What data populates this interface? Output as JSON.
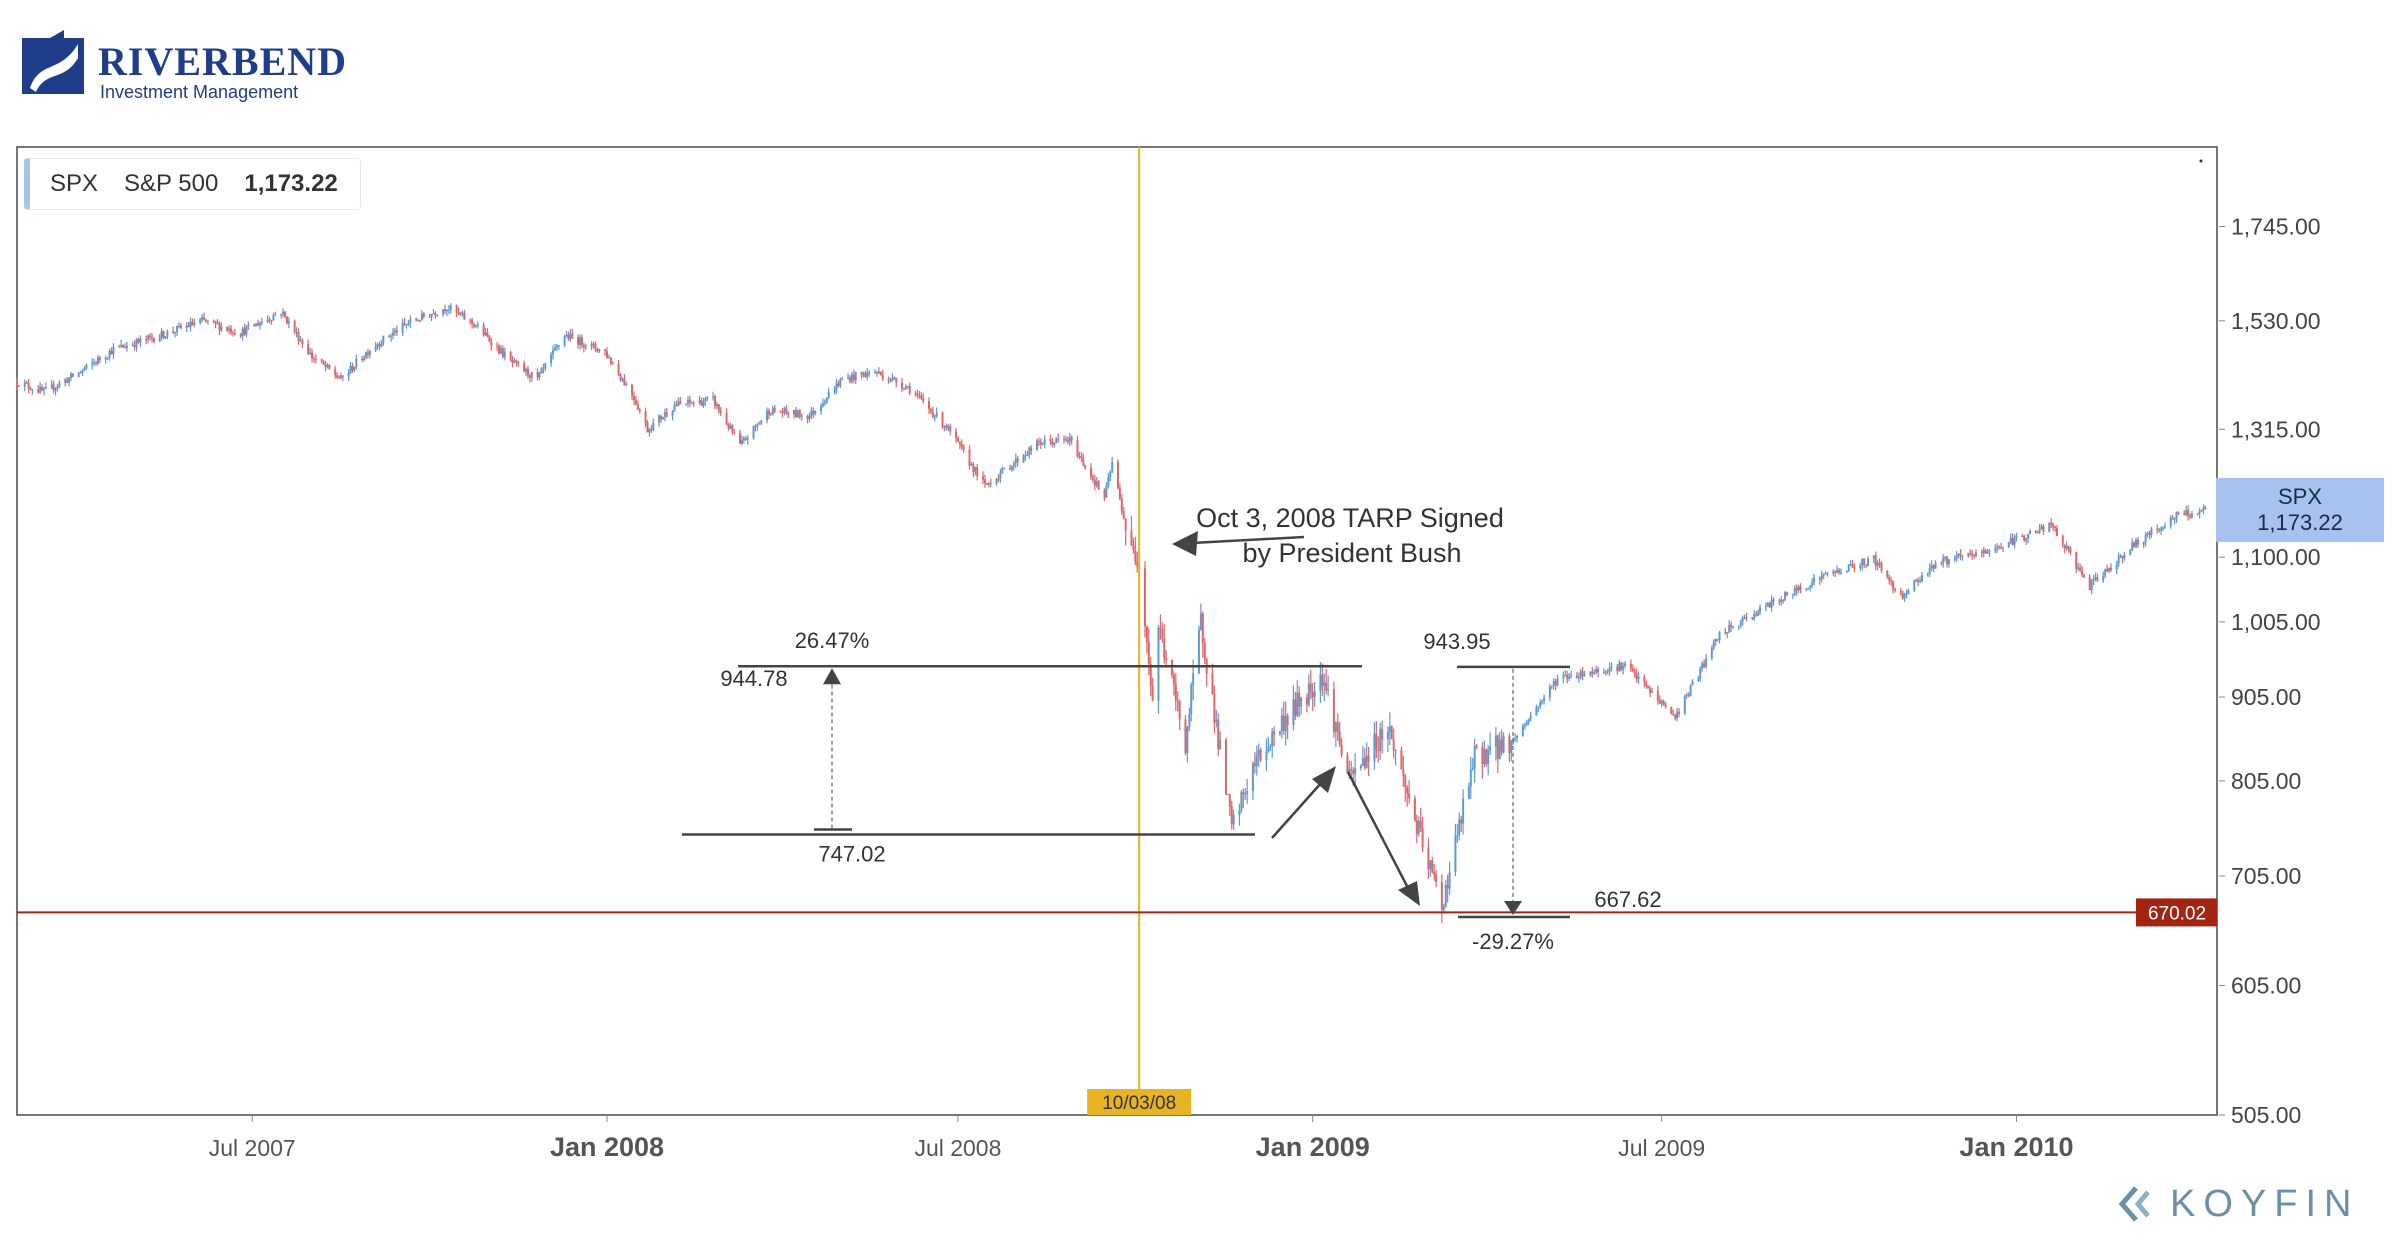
{
  "brand": {
    "name": "RIVERBEND",
    "subtitle": "Investment Management",
    "footer": "KOYFIN"
  },
  "legend": {
    "ticker": "SPX",
    "name": "S&P 500",
    "value": "1,173.22"
  },
  "price_label": {
    "ticker": "SPX",
    "value": "1,173.22"
  },
  "chart_data": {
    "type": "candlestick",
    "y_scale": "log",
    "ylim": [
      505,
      1950
    ],
    "xlim": [
      "2007-03-01",
      "2010-04-15"
    ],
    "y_ticks": [
      "1,745.00",
      "1,530.00",
      "1,315.00",
      "1,100.00",
      "1,005.00",
      "905.00",
      "805.00",
      "705.00",
      "605.00",
      "505.00"
    ],
    "y_tick_values": [
      1745,
      1530,
      1315,
      1100,
      1005,
      905,
      805,
      705,
      605,
      505
    ],
    "x_ticks": [
      {
        "date": "2007-07-01",
        "label": "Jul 2007",
        "bold": false
      },
      {
        "date": "2008-01-01",
        "label": "Jan 2008",
        "bold": true
      },
      {
        "date": "2008-07-01",
        "label": "Jul 2008",
        "bold": false
      },
      {
        "date": "2009-01-01",
        "label": "Jan 2009",
        "bold": true
      },
      {
        "date": "2009-07-01",
        "label": "Jul 2009",
        "bold": false
      },
      {
        "date": "2010-01-01",
        "label": "Jan 2010",
        "bold": true
      }
    ],
    "series": [
      {
        "date": "2007-03-01",
        "close": 1405
      },
      {
        "date": "2007-03-15",
        "close": 1385
      },
      {
        "date": "2007-04-01",
        "close": 1420
      },
      {
        "date": "2007-04-20",
        "close": 1470
      },
      {
        "date": "2007-05-15",
        "close": 1500
      },
      {
        "date": "2007-06-05",
        "close": 1530
      },
      {
        "date": "2007-06-25",
        "close": 1505
      },
      {
        "date": "2007-07-16",
        "close": 1550
      },
      {
        "date": "2007-08-01",
        "close": 1455
      },
      {
        "date": "2007-08-16",
        "close": 1410
      },
      {
        "date": "2007-09-01",
        "close": 1475
      },
      {
        "date": "2007-09-20",
        "close": 1525
      },
      {
        "date": "2007-10-10",
        "close": 1560
      },
      {
        "date": "2007-10-25",
        "close": 1520
      },
      {
        "date": "2007-11-12",
        "close": 1445
      },
      {
        "date": "2007-11-26",
        "close": 1410
      },
      {
        "date": "2007-12-10",
        "close": 1500
      },
      {
        "date": "2007-12-31",
        "close": 1465
      },
      {
        "date": "2008-01-15",
        "close": 1375
      },
      {
        "date": "2008-01-22",
        "close": 1315
      },
      {
        "date": "2008-02-05",
        "close": 1360
      },
      {
        "date": "2008-02-25",
        "close": 1370
      },
      {
        "date": "2008-03-10",
        "close": 1285
      },
      {
        "date": "2008-03-25",
        "close": 1350
      },
      {
        "date": "2008-04-15",
        "close": 1340
      },
      {
        "date": "2008-05-02",
        "close": 1410
      },
      {
        "date": "2008-05-19",
        "close": 1425
      },
      {
        "date": "2008-06-05",
        "close": 1395
      },
      {
        "date": "2008-06-25",
        "close": 1320
      },
      {
        "date": "2008-07-15",
        "close": 1215
      },
      {
        "date": "2008-07-28",
        "close": 1250
      },
      {
        "date": "2008-08-12",
        "close": 1290
      },
      {
        "date": "2008-08-28",
        "close": 1295
      },
      {
        "date": "2008-09-15",
        "close": 1195
      },
      {
        "date": "2008-09-19",
        "close": 1255
      },
      {
        "date": "2008-09-29",
        "close": 1105
      },
      {
        "date": "2008-10-03",
        "close": 1100
      },
      {
        "date": "2008-10-10",
        "close": 900
      },
      {
        "date": "2008-10-13",
        "close": 1000
      },
      {
        "date": "2008-10-27",
        "close": 850
      },
      {
        "date": "2008-11-04",
        "close": 1005
      },
      {
        "date": "2008-11-20",
        "close": 752
      },
      {
        "date": "2008-12-01",
        "close": 820
      },
      {
        "date": "2008-12-15",
        "close": 870
      },
      {
        "date": "2009-01-06",
        "close": 935
      },
      {
        "date": "2009-01-20",
        "close": 805
      },
      {
        "date": "2009-02-09",
        "close": 870
      },
      {
        "date": "2009-02-27",
        "close": 735
      },
      {
        "date": "2009-03-09",
        "close": 677
      },
      {
        "date": "2009-03-26",
        "close": 832
      },
      {
        "date": "2009-04-15",
        "close": 852
      },
      {
        "date": "2009-05-08",
        "close": 929
      },
      {
        "date": "2009-06-12",
        "close": 946
      },
      {
        "date": "2009-07-08",
        "close": 880
      },
      {
        "date": "2009-07-31",
        "close": 987
      },
      {
        "date": "2009-08-25",
        "close": 1028
      },
      {
        "date": "2009-09-22",
        "close": 1071
      },
      {
        "date": "2009-10-19",
        "close": 1097
      },
      {
        "date": "2009-11-02",
        "close": 1042
      },
      {
        "date": "2009-11-20",
        "close": 1091
      },
      {
        "date": "2009-12-15",
        "close": 1107
      },
      {
        "date": "2010-01-19",
        "close": 1150
      },
      {
        "date": "2010-02-08",
        "close": 1056
      },
      {
        "date": "2010-03-01",
        "close": 1115
      },
      {
        "date": "2010-03-25",
        "close": 1165
      },
      {
        "date": "2010-04-09",
        "close": 1173
      }
    ],
    "vertical_marker": {
      "date": "2008-10-03",
      "label": "10/03/08",
      "color": "#e8b323"
    },
    "horizontal_line": {
      "value": 670.02,
      "label": "670.02",
      "color": "#a42412"
    },
    "annotations": {
      "tarp": "Oct 3, 2008 TARP Signed by President Bush",
      "tarp_line1": "Oct 3, 2008 TARP Signed",
      "tarp_line2": "by President Bush",
      "rise_pct": "26.47%",
      "rise_high": "944.78",
      "rise_low": "747.02",
      "fall_pct": "-29.27%",
      "fall_high": "943.95",
      "fall_low": "667.62"
    },
    "ranges": {
      "rise": {
        "from": 747.02,
        "to": 944.78
      },
      "fall": {
        "from": 943.95,
        "to": 667.62
      }
    },
    "colors": {
      "up": "#5b9bd5",
      "down": "#e06666",
      "price_box": "#a7c2ef"
    }
  }
}
